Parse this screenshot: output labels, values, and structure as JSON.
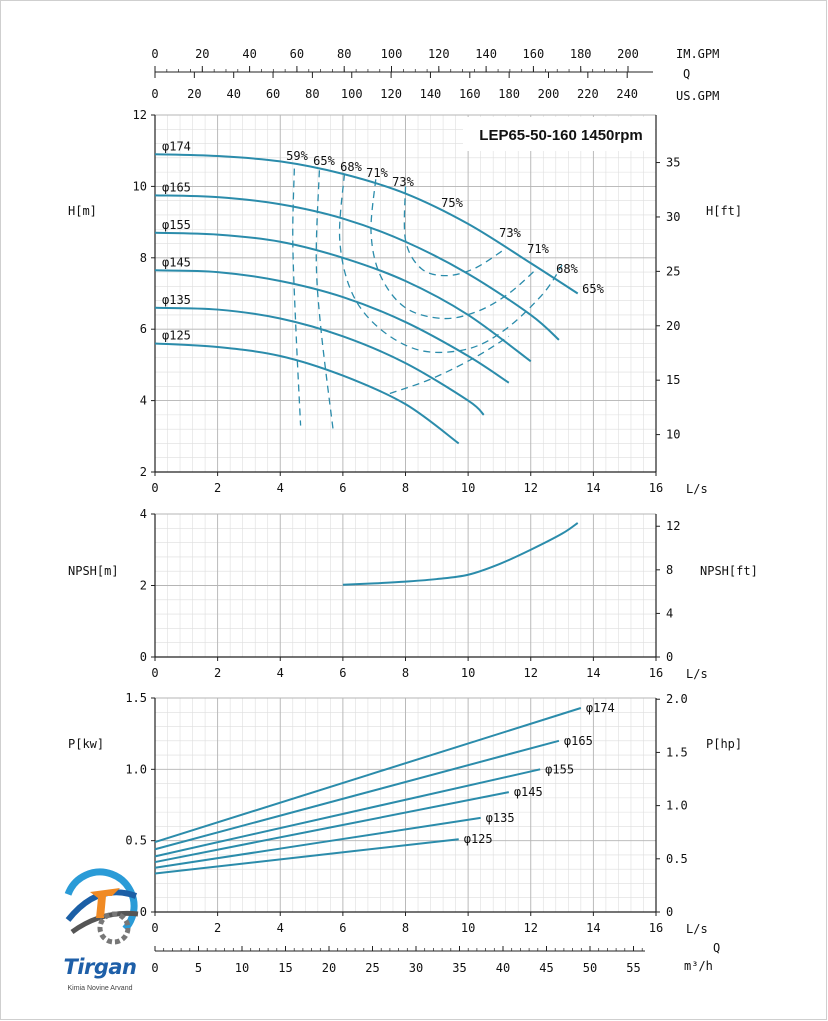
{
  "chart_data": [
    {
      "id": "head",
      "type": "line",
      "title": "LEP65-50-160 1450rpm",
      "ylabel": "H[m]",
      "ylabel_right": "H[ft]",
      "xlabel": "L/s",
      "xlim": [
        0,
        16
      ],
      "ylim": [
        2,
        12
      ],
      "x_ticks": [
        "0",
        "2",
        "4",
        "6",
        "8",
        "10",
        "12",
        "14",
        "16"
      ],
      "y_ticks": [
        "2",
        "4",
        "6",
        "8",
        "10",
        "12"
      ],
      "y2_ticks": [
        "10",
        "15",
        "20",
        "25",
        "30",
        "35"
      ],
      "top_axes": [
        {
          "label": "IM.GPM",
          "ticks": [
            "0",
            "20",
            "40",
            "60",
            "80",
            "100",
            "120",
            "140",
            "160",
            "180",
            "200"
          ]
        },
        {
          "label": "Q",
          "ticks": []
        },
        {
          "label": "US.GPM",
          "ticks": [
            "0",
            "20",
            "40",
            "60",
            "80",
            "100",
            "120",
            "140",
            "160",
            "180",
            "200",
            "220",
            "240"
          ]
        }
      ],
      "series": [
        {
          "name": "φ174",
          "x": [
            0,
            2,
            4,
            6,
            8,
            10,
            12,
            13.5
          ],
          "y": [
            10.9,
            10.85,
            10.7,
            10.35,
            9.8,
            8.95,
            7.85,
            7.0
          ]
        },
        {
          "name": "φ165",
          "x": [
            0,
            2,
            4,
            6,
            8,
            10,
            12,
            12.9
          ],
          "y": [
            9.75,
            9.7,
            9.5,
            9.1,
            8.45,
            7.55,
            6.4,
            5.7
          ]
        },
        {
          "name": "φ155",
          "x": [
            0,
            2,
            4,
            6,
            8,
            10,
            12
          ],
          "y": [
            8.7,
            8.65,
            8.45,
            8.0,
            7.35,
            6.4,
            5.1
          ]
        },
        {
          "name": "φ145",
          "x": [
            0,
            2,
            4,
            6,
            8,
            10,
            11.3
          ],
          "y": [
            7.65,
            7.6,
            7.35,
            6.9,
            6.2,
            5.25,
            4.5
          ]
        },
        {
          "name": "φ135",
          "x": [
            0,
            2,
            4,
            6,
            8,
            10,
            10.5
          ],
          "y": [
            6.6,
            6.55,
            6.3,
            5.8,
            5.05,
            4.0,
            3.6
          ]
        },
        {
          "name": "φ125",
          "x": [
            0,
            2,
            4,
            6,
            8,
            9.7
          ],
          "y": [
            5.6,
            5.5,
            5.25,
            4.7,
            3.9,
            2.8
          ]
        }
      ],
      "efficiency_contours": [
        {
          "label": "59%",
          "x": [
            4.45,
            4.4,
            4.5,
            4.65
          ],
          "y": [
            10.5,
            8.5,
            6.0,
            3.3
          ]
        },
        {
          "label": "65%",
          "x": [
            5.25,
            5.15,
            5.3,
            5.7
          ],
          "y": [
            10.45,
            8.0,
            6.0,
            3.1
          ]
        },
        {
          "label": "68%",
          "x": [
            6.05,
            5.9,
            6.3,
            7.2,
            8.5,
            10.0,
            11.2,
            12.4,
            13.0
          ],
          "y": [
            10.35,
            8.5,
            7.0,
            6.0,
            5.4,
            5.45,
            6.0,
            7.0,
            7.8
          ]
        },
        {
          "label": "71%",
          "x": [
            7.05,
            6.9,
            7.2,
            8.0,
            9.2,
            10.3,
            11.3,
            12.2
          ],
          "y": [
            10.2,
            8.7,
            7.5,
            6.6,
            6.3,
            6.5,
            7.0,
            7.7
          ]
        },
        {
          "label": "73%",
          "x": [
            8.0,
            8.0,
            8.5,
            9.3,
            10.2,
            11.1
          ],
          "y": [
            10.0,
            8.5,
            7.7,
            7.5,
            7.7,
            8.2
          ]
        },
        {
          "label": "68%",
          "x": [
            7.5,
            8.8,
            10.2,
            11.3
          ],
          "y": [
            4.2,
            4.6,
            5.2,
            5.8
          ]
        }
      ],
      "efficiency_labels": [
        "59%",
        "65%",
        "68%",
        "71%",
        "73%",
        "75%",
        "73%",
        "71%",
        "68%",
        "65%"
      ]
    },
    {
      "id": "npsh",
      "type": "line",
      "ylabel": "NPSH[m]",
      "ylabel_right": "NPSH[ft]",
      "xlabel": "L/s",
      "xlim": [
        0,
        16
      ],
      "ylim": [
        0,
        4
      ],
      "x_ticks": [
        "0",
        "2",
        "4",
        "6",
        "8",
        "10",
        "12",
        "14",
        "16"
      ],
      "y_ticks": [
        "0",
        "2",
        "4"
      ],
      "y2_ticks": [
        "0",
        "4",
        "8",
        "12"
      ],
      "series": [
        {
          "x": [
            6,
            7,
            8,
            9,
            10,
            11,
            12,
            13,
            13.5
          ],
          "y": [
            2.02,
            2.06,
            2.11,
            2.18,
            2.3,
            2.6,
            3.0,
            3.45,
            3.75
          ]
        }
      ]
    },
    {
      "id": "power",
      "type": "line",
      "ylabel": "P[kw]",
      "ylabel_right": "P[hp]",
      "xlabel": "L/s",
      "xlim": [
        0,
        16
      ],
      "ylim": [
        0,
        1.5
      ],
      "x_ticks": [
        "0",
        "2",
        "4",
        "6",
        "8",
        "10",
        "12",
        "14",
        "16"
      ],
      "y_ticks": [
        "0",
        "0.5",
        "1.0",
        "1.5"
      ],
      "y2_ticks": [
        "0",
        "0.5",
        "1.0",
        "1.5",
        "2.0"
      ],
      "bottom_axis": {
        "label": "Q",
        "unit": "m³/h",
        "ticks": [
          "0",
          "5",
          "10",
          "15",
          "20",
          "25",
          "30",
          "35",
          "40",
          "45",
          "50",
          "55"
        ]
      },
      "series": [
        {
          "name": "φ174",
          "x": [
            0,
            13.6
          ],
          "y": [
            0.49,
            1.43
          ]
        },
        {
          "name": "φ165",
          "x": [
            0,
            12.9
          ],
          "y": [
            0.44,
            1.2
          ]
        },
        {
          "name": "φ155",
          "x": [
            0,
            12.3
          ],
          "y": [
            0.39,
            1.0
          ]
        },
        {
          "name": "φ145",
          "x": [
            0,
            11.3
          ],
          "y": [
            0.35,
            0.84
          ]
        },
        {
          "name": "φ135",
          "x": [
            0,
            10.4
          ],
          "y": [
            0.31,
            0.66
          ]
        },
        {
          "name": "φ125",
          "x": [
            0,
            9.7
          ],
          "y": [
            0.27,
            0.51
          ]
        }
      ]
    }
  ],
  "logo": {
    "name": "Tirgan",
    "tagline": "Kimia Novine Arvand"
  },
  "colors": {
    "curve": "#2b8cab",
    "grid_major": "#b5b5b5",
    "grid_minor": "#dedede",
    "axis": "#222222"
  }
}
